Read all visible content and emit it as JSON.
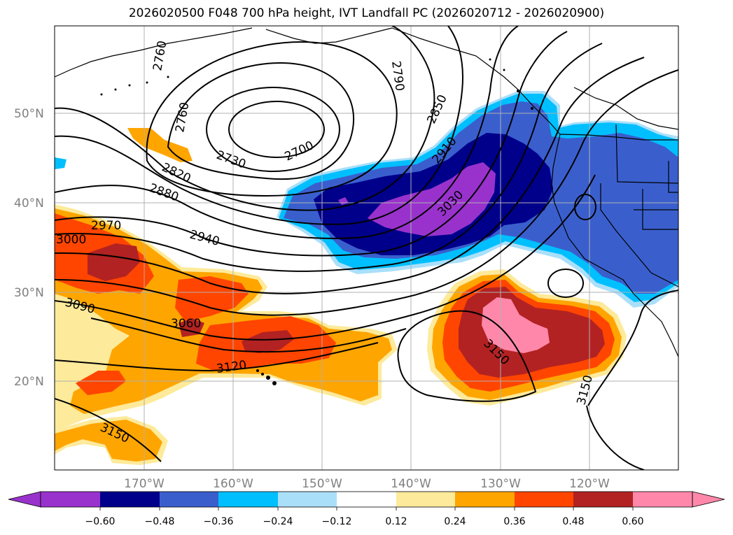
{
  "title": "2026020500 F048 700 hPa height, IVT Landfall PC (2026020712 - 2026020900)",
  "colors": {
    "pos_0_12": "#fdea9b",
    "pos_24_36": "#ffa500",
    "pos_36_48": "#ff4500",
    "pos_48_60": "#b22222",
    "pos_60_plus": "#ff88aa",
    "neg_12_24": "#aadffa",
    "neg_24_36": "#00bfff",
    "neg_36_48": "#3a5fcd",
    "neg_48_60": "#00008b",
    "neg_60_plus": "#9932cc",
    "contour": "#000000",
    "grid": "#b0b0b0",
    "coast": "#000000"
  },
  "lat_ticks": [
    "50°N",
    "40°N",
    "30°N",
    "20°N"
  ],
  "lon_ticks": [
    "170°W",
    "160°W",
    "150°W",
    "140°W",
    "130°W",
    "120°W"
  ],
  "colorbar": {
    "ticks": [
      "−0.60",
      "−0.48",
      "−0.36",
      "−0.24",
      "−0.12",
      "0.12",
      "0.24",
      "0.36",
      "0.48",
      "0.60"
    ]
  },
  "contour_labels": [
    "2760",
    "2760",
    "2790",
    "2850",
    "2730",
    "2700",
    "2820",
    "2910",
    "2880",
    "3030",
    "2970",
    "2940",
    "3000",
    "3090",
    "3060",
    "3120",
    "3150",
    "3150",
    "3150"
  ]
}
